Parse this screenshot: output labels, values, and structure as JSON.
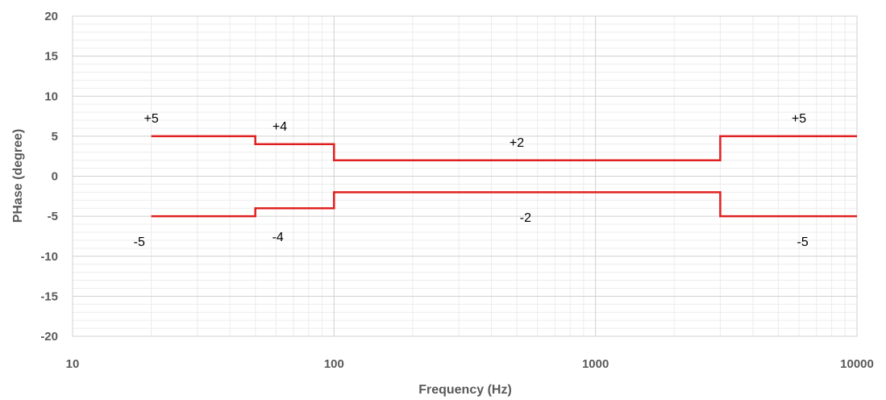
{
  "chart_data": {
    "type": "line",
    "title": "",
    "xlabel": "Frequency (Hz)",
    "ylabel": "PHase (degree)",
    "x_scale": "log",
    "xlim": [
      10,
      10000
    ],
    "ylim": [
      -20,
      20
    ],
    "x_ticks": [
      10,
      100,
      1000,
      10000
    ],
    "y_ticks": [
      20,
      15,
      10,
      5,
      0,
      -5,
      -10,
      -15,
      -20
    ],
    "grid": true,
    "legend": "none",
    "colors": {
      "series": "#e02020",
      "grid_major": "#d0d0d0",
      "grid_minor": "#ececec",
      "text": "#595959"
    },
    "series": [
      {
        "name": "",
        "x": [
          20,
          50,
          50,
          100,
          100,
          3000,
          3000,
          10000
        ],
        "y": [
          5,
          5,
          4,
          4,
          2,
          2,
          5,
          5
        ]
      },
      {
        "name": "",
        "x": [
          20,
          50,
          50,
          100,
          100,
          3000,
          3000,
          10000
        ],
        "y": [
          -5,
          -5,
          -4,
          -4,
          -2,
          -2,
          -5,
          -5
        ]
      }
    ],
    "annotations": [
      {
        "text": "+5",
        "x": 20,
        "y": 7.2
      },
      {
        "text": "+4",
        "x": 62,
        "y": 6.2
      },
      {
        "text": "+2",
        "x": 500,
        "y": 4.2
      },
      {
        "text": "+5",
        "x": 6000,
        "y": 7.2
      },
      {
        "text": "-5",
        "x": 18,
        "y": -8.2
      },
      {
        "text": "-4",
        "x": 61,
        "y": -7.6
      },
      {
        "text": "-2",
        "x": 540,
        "y": -5.2
      },
      {
        "text": "-5",
        "x": 6200,
        "y": -8.2
      }
    ]
  }
}
